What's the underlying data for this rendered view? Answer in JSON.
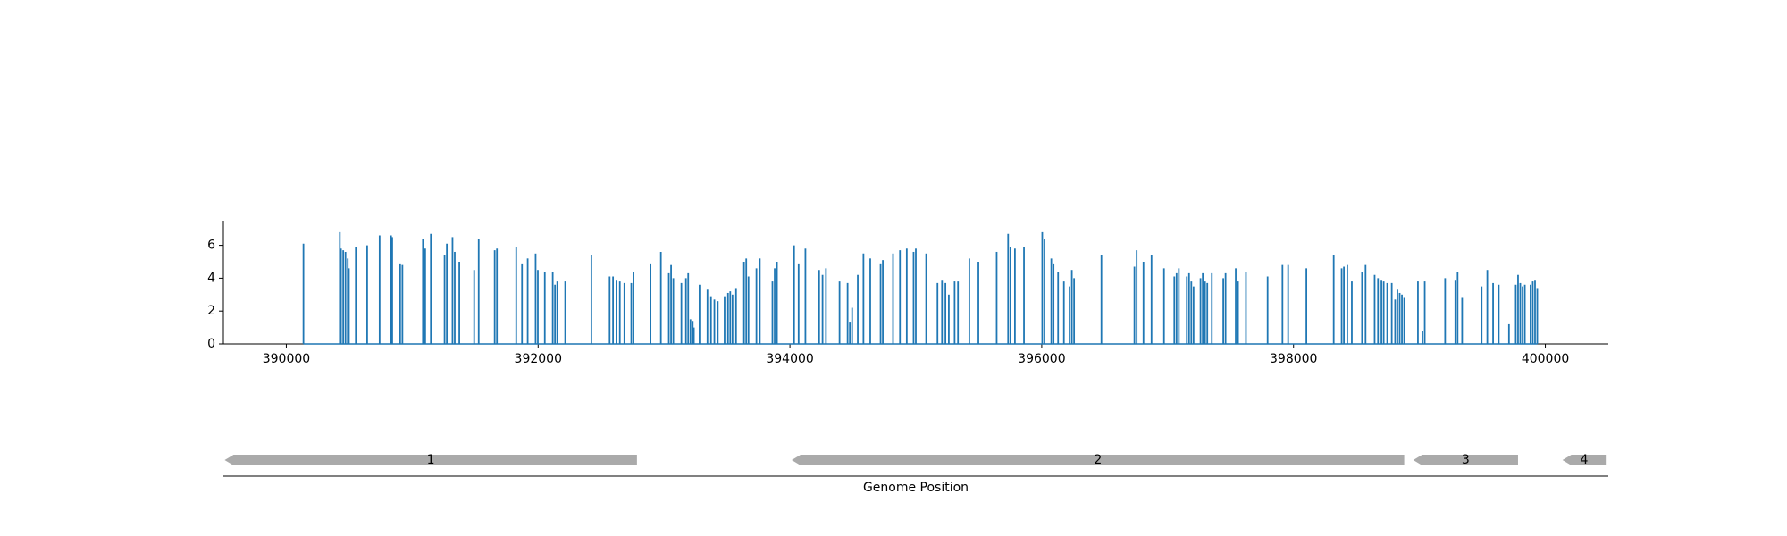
{
  "chart_data": {
    "type": "stem",
    "xlabel": "Genome Position",
    "color": "#1f77b4",
    "gene_color": "#aaaaaa",
    "xlim": [
      389500,
      400500
    ],
    "xticks": [
      390000,
      392000,
      394000,
      396000,
      398000,
      400000
    ],
    "ylim": [
      0,
      7.5
    ],
    "yticks": [
      0,
      2,
      4,
      6
    ],
    "x": [
      390136,
      390425,
      390434,
      390452,
      390470,
      390488,
      390497,
      390552,
      390642,
      390741,
      390832,
      390841,
      390904,
      390922,
      391085,
      391103,
      391148,
      391257,
      391275,
      391320,
      391338,
      391374,
      391492,
      391528,
      391655,
      391673,
      391826,
      391872,
      391917,
      391980,
      391998,
      392053,
      392116,
      392134,
      392152,
      392215,
      392423,
      392568,
      392595,
      392622,
      392649,
      392685,
      392740,
      392758,
      392893,
      392975,
      393038,
      393056,
      393074,
      393138,
      393174,
      393192,
      393210,
      393228,
      393237,
      393282,
      393345,
      393373,
      393400,
      393427,
      393481,
      393508,
      393526,
      393544,
      393572,
      393635,
      393653,
      393671,
      393734,
      393761,
      393861,
      393879,
      393897,
      394033,
      394069,
      394123,
      394232,
      394259,
      394286,
      394394,
      394458,
      394476,
      394494,
      394539,
      394584,
      394638,
      394720,
      394738,
      394819,
      394874,
      394928,
      394982,
      395000,
      395082,
      395172,
      395208,
      395235,
      395262,
      395308,
      395335,
      395425,
      395497,
      395642,
      395733,
      395751,
      395787,
      395859,
      396004,
      396022,
      396076,
      396094,
      396130,
      396176,
      396221,
      396239,
      396257,
      396474,
      396736,
      396754,
      396808,
      396872,
      396971,
      397053,
      397071,
      397089,
      397152,
      397170,
      397188,
      397206,
      397261,
      397279,
      397297,
      397315,
      397351,
      397442,
      397460,
      397541,
      397559,
      397622,
      397794,
      397912,
      397957,
      398102,
      398319,
      398382,
      398400,
      398427,
      398463,
      398544,
      398572,
      398644,
      398671,
      398698,
      398716,
      398744,
      398780,
      398807,
      398825,
      398843,
      398861,
      398879,
      398988,
      399024,
      399042,
      399204,
      399285,
      399303,
      399339,
      399494,
      399539,
      399585,
      399630,
      399711,
      399765,
      399783,
      399801,
      399819,
      399837,
      399882,
      399900,
      399918,
      399936
    ],
    "values": [
      6.1,
      6.8,
      5.8,
      5.7,
      5.6,
      5.2,
      4.6,
      5.9,
      6.0,
      6.6,
      6.6,
      6.5,
      4.9,
      4.8,
      6.4,
      5.8,
      6.7,
      5.4,
      6.1,
      6.5,
      5.6,
      5.0,
      4.5,
      6.4,
      5.7,
      5.8,
      5.9,
      4.9,
      5.2,
      5.5,
      4.5,
      4.4,
      4.4,
      3.6,
      3.8,
      3.8,
      5.4,
      4.1,
      4.1,
      3.9,
      3.8,
      3.7,
      3.7,
      4.4,
      4.9,
      5.6,
      4.3,
      4.8,
      4.0,
      3.7,
      4.0,
      4.3,
      1.5,
      1.4,
      1.0,
      3.6,
      3.3,
      2.9,
      2.7,
      2.6,
      2.9,
      3.1,
      3.2,
      3.0,
      3.4,
      5.0,
      5.2,
      4.1,
      4.6,
      5.2,
      3.8,
      4.6,
      5.0,
      6.0,
      4.9,
      5.8,
      4.5,
      4.2,
      4.6,
      3.8,
      3.7,
      1.3,
      2.2,
      4.2,
      5.5,
      5.2,
      4.9,
      5.1,
      5.5,
      5.7,
      5.8,
      5.6,
      5.8,
      5.5,
      3.7,
      3.9,
      3.7,
      3.0,
      3.8,
      3.8,
      5.2,
      5.0,
      5.6,
      6.7,
      5.9,
      5.8,
      5.9,
      6.8,
      6.4,
      5.2,
      4.9,
      4.4,
      3.8,
      3.5,
      4.5,
      4.0,
      5.4,
      4.7,
      5.7,
      5.0,
      5.4,
      4.6,
      4.1,
      4.3,
      4.6,
      4.1,
      4.3,
      3.8,
      3.5,
      4.0,
      4.3,
      3.8,
      3.7,
      4.3,
      4.0,
      4.3,
      4.6,
      3.8,
      4.4,
      4.1,
      4.8,
      4.8,
      4.6,
      5.4,
      4.6,
      4.7,
      4.8,
      3.8,
      4.4,
      4.8,
      4.2,
      4.0,
      3.9,
      3.8,
      3.7,
      3.7,
      2.7,
      3.3,
      3.1,
      3.0,
      2.8,
      3.8,
      0.8,
      3.8,
      4.0,
      3.9,
      4.4,
      2.8,
      3.5,
      4.5,
      3.7,
      3.6,
      1.2,
      3.6,
      4.2,
      3.7,
      3.5,
      3.6,
      3.6,
      3.8,
      3.9,
      3.4
    ],
    "genes": [
      {
        "label": "1",
        "start": 389510,
        "end": 392785,
        "strand": "-"
      },
      {
        "label": "2",
        "start": 394014,
        "end": 398879,
        "strand": "-"
      },
      {
        "label": "3",
        "start": 398951,
        "end": 399783,
        "strand": "-"
      },
      {
        "label": "4",
        "start": 400136,
        "end": 400480,
        "strand": "-"
      }
    ]
  }
}
